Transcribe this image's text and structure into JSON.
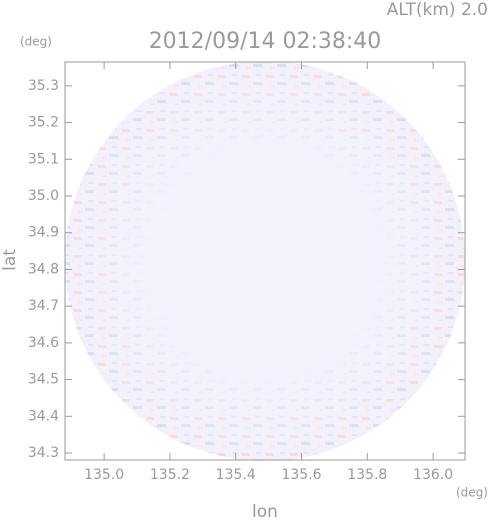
{
  "chart_data": {
    "type": "map",
    "title": "2012/09/14 02:38:40",
    "subtitle": "ALT(km) 2.0",
    "x_label": "lon",
    "y_label": "lat",
    "x_unit": "(deg)",
    "y_unit": "(deg)",
    "xlim": [
      134.881,
      136.097
    ],
    "ylim": [
      34.281,
      35.365
    ],
    "xticks": [
      {
        "value": 135,
        "label": "135.0"
      },
      135.2,
      135.4,
      135.6,
      135.8,
      {
        "value": 136,
        "label": "136.0"
      }
    ],
    "yticks": [
      34.3,
      34.4,
      34.5,
      34.6,
      34.7,
      34.8,
      34.9,
      {
        "value": 35,
        "label": "35.0"
      },
      35.1,
      35.2,
      35.3
    ]
  }
}
